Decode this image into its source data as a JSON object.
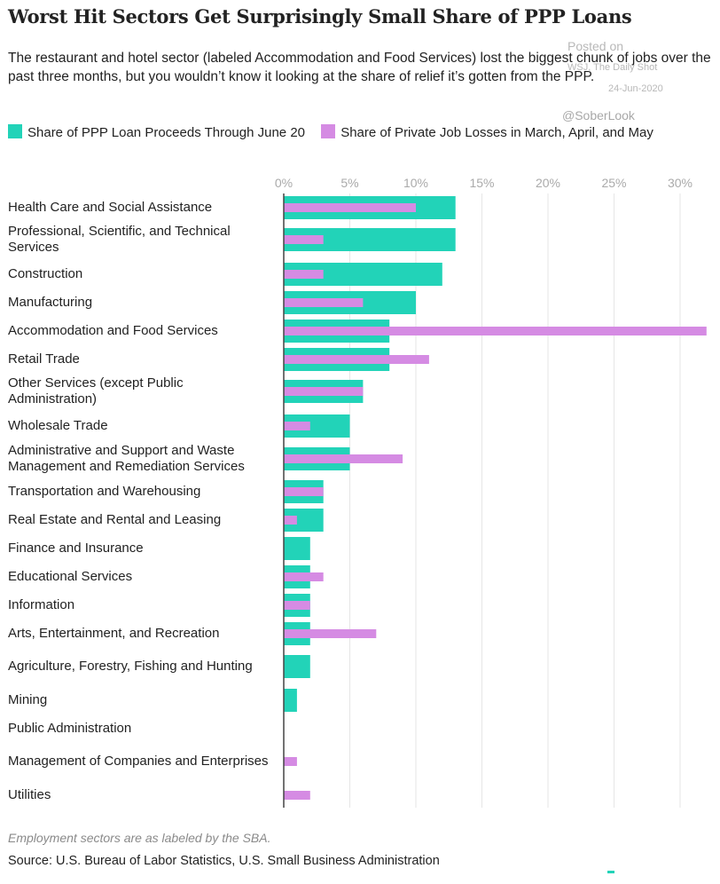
{
  "header": {
    "title": "Worst Hit Sectors Get Surprisingly Small Share of PPP Loans",
    "subtitle": "The restaurant and hotel sector (labeled Accommodation and Food Services) lost the biggest chunk of jobs over the past three months, but you wouldn’t know it looking at the share of relief it’s gotten from the PPP."
  },
  "watermark": {
    "posted": "Posted on",
    "source": "WSJ, The Daily Shot",
    "date": "24-Jun-2020",
    "handle": "@SoberLook"
  },
  "footer": {
    "note": "Employment sectors are as labeled by the SBA.",
    "source": "Source: U.S. Bureau of Labor Statistics, U.S. Small Business Administration"
  },
  "colors": {
    "ppp": "#22d3b8",
    "jobs": "#d58be3",
    "axis": "#444444",
    "grid": "#e6e6e6",
    "tick": "#aaaaaa"
  },
  "chart_data": {
    "type": "bar",
    "orientation": "horizontal",
    "title": "Worst Hit Sectors Get Surprisingly Small Share of PPP Loans",
    "categories": [
      "Health Care and Social Assistance",
      "Professional, Scientific, and Technical Services",
      "Construction",
      "Manufacturing",
      "Accommodation and Food Services",
      "Retail Trade",
      "Other Services (except Public Administration)",
      "Wholesale Trade",
      "Administrative and Support and Waste Management and Remediation Services",
      "Transportation and Warehousing",
      "Real Estate and Rental and Leasing",
      "Finance and Insurance",
      "Educational Services",
      "Information",
      "Arts, Entertainment, and Recreation",
      "Agriculture, Forestry, Fishing and Hunting",
      "Mining",
      "Public Administration",
      "Management of Companies and Enterprises",
      "Utilities"
    ],
    "series": [
      {
        "name": "Share of PPP Loan Proceeds Through June 20",
        "color": "#22d3b8",
        "values": [
          13,
          13,
          12,
          10,
          8,
          8,
          6,
          5,
          5,
          3,
          3,
          2,
          2,
          2,
          2,
          2,
          1,
          0,
          0,
          0
        ]
      },
      {
        "name": "Share of Private Job Losses in March, April, and May",
        "color": "#d58be3",
        "values": [
          10,
          3,
          3,
          6,
          32,
          11,
          6,
          2,
          9,
          3,
          1,
          0,
          3,
          2,
          7,
          0,
          0,
          0,
          1,
          2
        ]
      }
    ],
    "xticks": [
      "0%",
      "5%",
      "10%",
      "15%",
      "20%",
      "25%",
      "30%"
    ],
    "xlim": [
      0,
      32
    ],
    "unit": "%",
    "grid": true,
    "legend": "top"
  }
}
